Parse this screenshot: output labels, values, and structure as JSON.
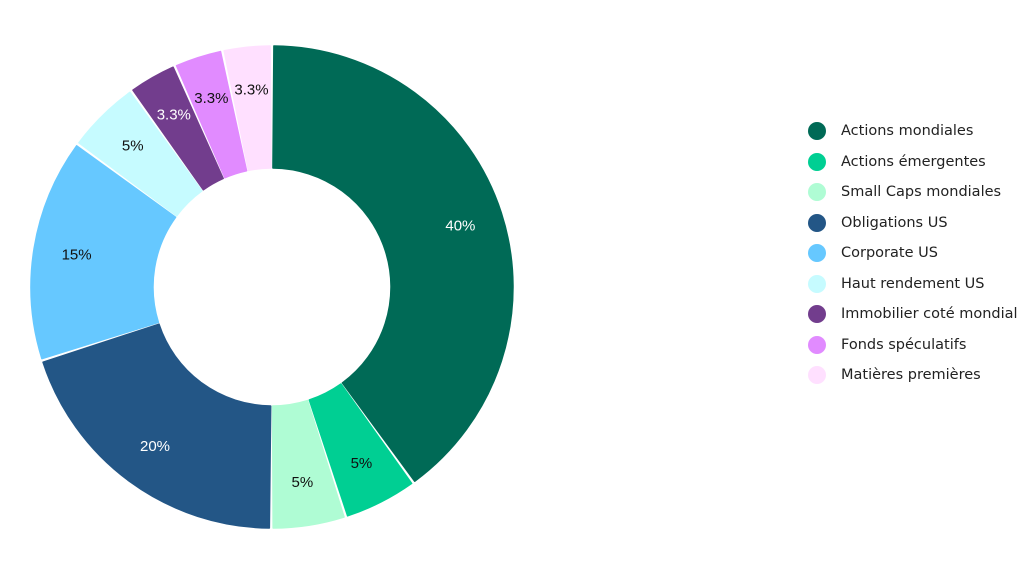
{
  "chart_data": {
    "type": "pie",
    "style": "donut",
    "categories": [
      "Actions mondiales",
      "Actions émergentes",
      "Small Caps mondiales",
      "Obligations US",
      "Corporate US",
      "Haut rendement US",
      "Immobilier coté mondial",
      "Fonds spéculatifs",
      "Matières premières"
    ],
    "values": [
      40,
      5,
      5,
      20,
      15,
      5,
      3.3,
      3.3,
      3.3
    ],
    "labels": [
      "40%",
      "5%",
      "5%",
      "20%",
      "15%",
      "5%",
      "3.3%",
      "3.3%",
      "3.3%"
    ],
    "colors": [
      "#006A56",
      "#00CF93",
      "#AFFCD4",
      "#235686",
      "#66C8FF",
      "#C6FBFF",
      "#723D8D",
      "#E18BFF",
      "#FFE0FF"
    ],
    "label_colors": [
      "#ffffff",
      "#111111",
      "#111111",
      "#ffffff",
      "#111111",
      "#111111",
      "#ffffff",
      "#111111",
      "#111111"
    ],
    "legend_position": "right"
  }
}
